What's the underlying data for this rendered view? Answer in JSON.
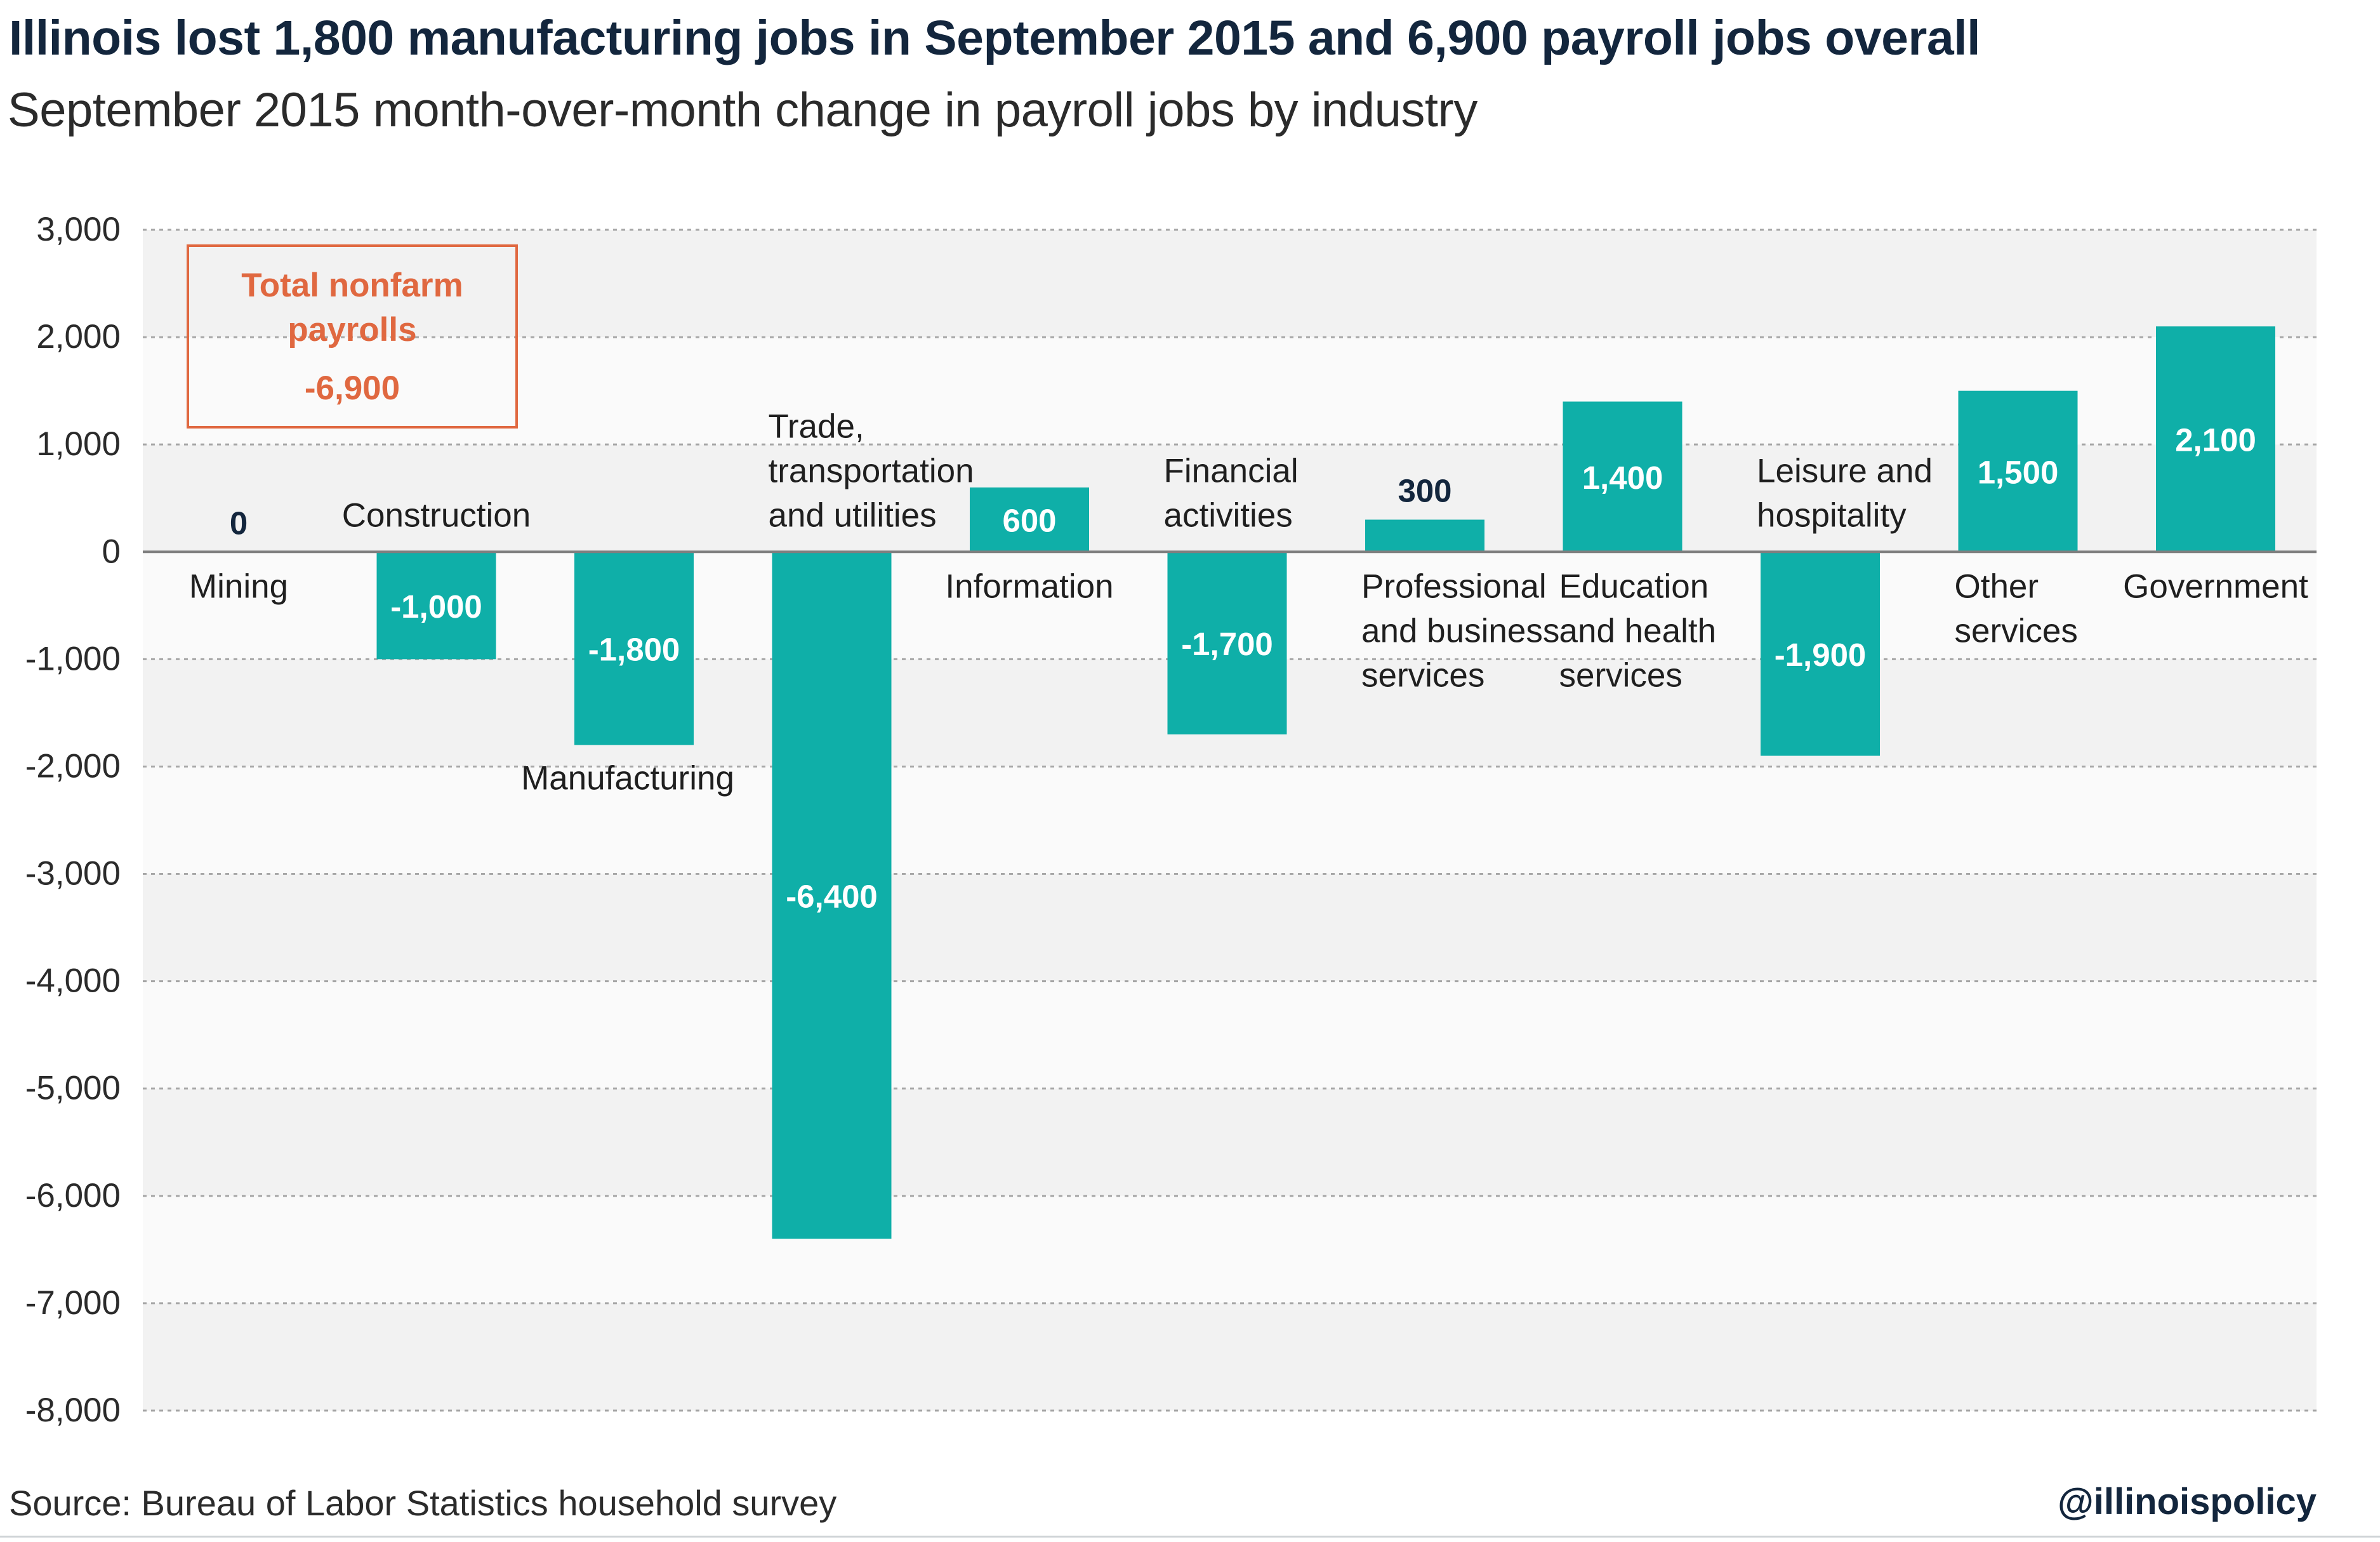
{
  "title": "Illinois lost 1,800 manufacturing jobs in September 2015 and 6,900 payroll jobs overall",
  "subtitle": "September 2015 month-over-month change in payroll jobs by industry",
  "source": "Source: Bureau of Labor Statistics household survey",
  "handle": "@illinoispolicy",
  "colors": {
    "bar": "#0fafa8",
    "accent": "#e06840",
    "title": "#13263d",
    "band": "#f2f2f2",
    "band_alt": "#fafafa",
    "grid": "#a6a6a6"
  },
  "chart_data": {
    "type": "bar",
    "categories": [
      [
        "Mining"
      ],
      [
        "Construction"
      ],
      [
        "Manufacturing"
      ],
      [
        "Trade,",
        "transportation",
        "and utilities"
      ],
      [
        "Information"
      ],
      [
        "Financial",
        "activities"
      ],
      [
        "Professional",
        "and business",
        "services"
      ],
      [
        "Education",
        "and health",
        "services"
      ],
      [
        "Leisure and",
        "hospitality"
      ],
      [
        "Other",
        "services"
      ],
      [
        "Government"
      ]
    ],
    "values": [
      0,
      -1000,
      -1800,
      -6400,
      600,
      -1700,
      300,
      1400,
      -1900,
      1500,
      2100
    ],
    "data_labels": [
      "0",
      "-1,000",
      "-1,800",
      "-6,400",
      "600",
      "-1,700",
      "300",
      "1,400",
      "-1,900",
      "1,500",
      "2,100"
    ],
    "ylim": [
      -8000,
      3000
    ],
    "y_ticks": [
      3000,
      2000,
      1000,
      0,
      -1000,
      -2000,
      -3000,
      -4000,
      -5000,
      -6000,
      -7000,
      -8000
    ],
    "y_tick_labels": [
      "3,000",
      "2,000",
      "1,000",
      "0",
      "-1,000",
      "-2,000",
      "-3,000",
      "-4,000",
      "-5,000",
      "-6,000",
      "-7,000",
      "-8,000"
    ],
    "grid": true,
    "legend": "none",
    "annotation": {
      "label": "Total nonfarm payrolls",
      "value": "-6,900"
    }
  }
}
